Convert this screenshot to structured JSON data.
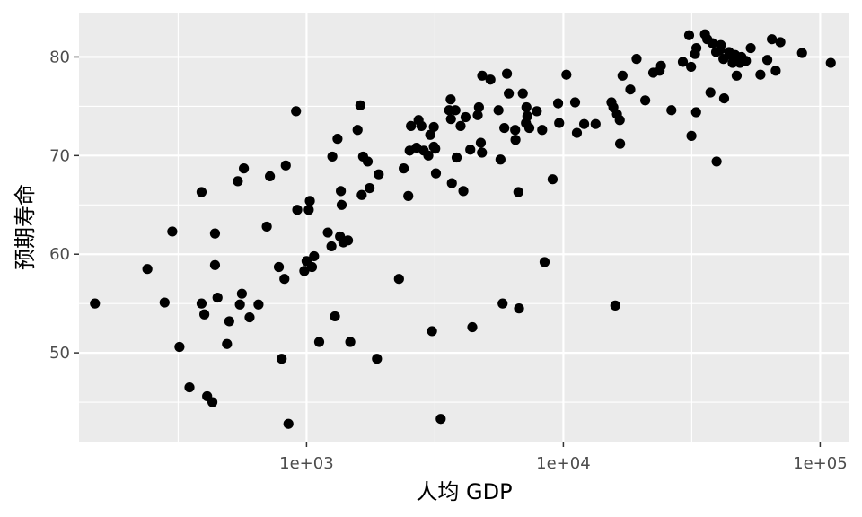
{
  "chart_data": {
    "type": "scatter",
    "xlabel": "人均 GDP",
    "ylabel": "预期寿命",
    "x_scale": "log10",
    "xlim": [
      130,
      130000
    ],
    "ylim": [
      41,
      84.5
    ],
    "x_ticks": [
      {
        "value": 1000,
        "label": "1e+03"
      },
      {
        "value": 10000,
        "label": "1e+04"
      },
      {
        "value": 100000,
        "label": "1e+05"
      }
    ],
    "x_minor_ticks": [
      316.23,
      3162.3,
      31623
    ],
    "y_ticks": [
      {
        "value": 50,
        "label": "50"
      },
      {
        "value": 60,
        "label": "60"
      },
      {
        "value": 70,
        "label": "70"
      },
      {
        "value": 80,
        "label": "80"
      }
    ],
    "y_minor_ticks": [
      45,
      55,
      65,
      75
    ],
    "grid": true,
    "point_color": "#000000",
    "panel_color": "#ebebeb",
    "grid_color": "#ffffff",
    "points": [
      [
        150,
        55.0
      ],
      [
        240,
        58.5
      ],
      [
        280,
        55.1
      ],
      [
        300,
        62.3
      ],
      [
        320,
        50.6
      ],
      [
        350,
        46.5
      ],
      [
        390,
        66.3
      ],
      [
        390,
        55.0
      ],
      [
        400,
        53.9
      ],
      [
        410,
        45.6
      ],
      [
        430,
        45.0
      ],
      [
        440,
        62.1
      ],
      [
        440,
        58.9
      ],
      [
        450,
        55.6
      ],
      [
        490,
        50.9
      ],
      [
        500,
        53.2
      ],
      [
        540,
        67.4
      ],
      [
        550,
        54.9
      ],
      [
        560,
        56.0
      ],
      [
        570,
        68.7
      ],
      [
        600,
        53.6
      ],
      [
        650,
        54.9
      ],
      [
        700,
        62.8
      ],
      [
        720,
        67.9
      ],
      [
        780,
        58.7
      ],
      [
        800,
        49.4
      ],
      [
        820,
        57.5
      ],
      [
        830,
        69.0
      ],
      [
        850,
        42.8
      ],
      [
        910,
        74.5
      ],
      [
        920,
        64.5
      ],
      [
        980,
        58.3
      ],
      [
        1000,
        59.3
      ],
      [
        1020,
        64.5
      ],
      [
        1030,
        65.4
      ],
      [
        1050,
        58.7
      ],
      [
        1070,
        59.8
      ],
      [
        1120,
        51.1
      ],
      [
        1210,
        62.2
      ],
      [
        1250,
        60.8
      ],
      [
        1260,
        69.9
      ],
      [
        1290,
        53.7
      ],
      [
        1320,
        71.7
      ],
      [
        1350,
        61.8
      ],
      [
        1360,
        66.4
      ],
      [
        1370,
        65.0
      ],
      [
        1390,
        61.2
      ],
      [
        1450,
        61.4
      ],
      [
        1480,
        51.1
      ],
      [
        1580,
        72.6
      ],
      [
        1620,
        75.1
      ],
      [
        1640,
        66.0
      ],
      [
        1660,
        69.9
      ],
      [
        1730,
        69.4
      ],
      [
        1760,
        66.7
      ],
      [
        1880,
        49.4
      ],
      [
        1910,
        68.1
      ],
      [
        2290,
        57.5
      ],
      [
        2390,
        68.7
      ],
      [
        2490,
        65.9
      ],
      [
        2520,
        70.5
      ],
      [
        2550,
        73.0
      ],
      [
        2680,
        70.8
      ],
      [
        2730,
        73.6
      ],
      [
        2800,
        73.0
      ],
      [
        2860,
        70.5
      ],
      [
        2980,
        70.0
      ],
      [
        3030,
        72.1
      ],
      [
        3080,
        52.2
      ],
      [
        3130,
        70.9
      ],
      [
        3130,
        72.9
      ],
      [
        3170,
        70.7
      ],
      [
        3190,
        68.2
      ],
      [
        3330,
        43.3
      ],
      [
        3590,
        74.6
      ],
      [
        3640,
        75.7
      ],
      [
        3650,
        73.7
      ],
      [
        3680,
        67.2
      ],
      [
        3800,
        74.6
      ],
      [
        3840,
        69.8
      ],
      [
        3980,
        73.0
      ],
      [
        4080,
        66.4
      ],
      [
        4160,
        73.9
      ],
      [
        4340,
        70.6
      ],
      [
        4420,
        52.6
      ],
      [
        4640,
        74.1
      ],
      [
        4690,
        74.9
      ],
      [
        4770,
        71.3
      ],
      [
        4820,
        70.3
      ],
      [
        4830,
        78.1
      ],
      [
        5200,
        77.7
      ],
      [
        5590,
        74.6
      ],
      [
        5690,
        69.6
      ],
      [
        5800,
        55.0
      ],
      [
        5890,
        72.8
      ],
      [
        6030,
        78.3
      ],
      [
        6130,
        76.3
      ],
      [
        6490,
        72.6
      ],
      [
        6510,
        71.6
      ],
      [
        6680,
        66.3
      ],
      [
        6720,
        54.5
      ],
      [
        6950,
        76.3
      ],
      [
        7150,
        73.3
      ],
      [
        7180,
        74.9
      ],
      [
        7240,
        74.0
      ],
      [
        7370,
        72.8
      ],
      [
        7880,
        74.5
      ],
      [
        8270,
        72.6
      ],
      [
        8450,
        59.2
      ],
      [
        9080,
        67.6
      ],
      [
        9540,
        75.3
      ],
      [
        9630,
        73.3
      ],
      [
        10280,
        78.2
      ],
      [
        11110,
        75.4
      ],
      [
        11290,
        72.3
      ],
      [
        12050,
        73.2
      ],
      [
        13350,
        73.2
      ],
      [
        15390,
        75.4
      ],
      [
        15660,
        74.9
      ],
      [
        15930,
        54.8
      ],
      [
        16170,
        74.2
      ],
      [
        16580,
        73.6
      ],
      [
        16630,
        71.2
      ],
      [
        17000,
        78.1
      ],
      [
        18230,
        76.7
      ],
      [
        19280,
        79.8
      ],
      [
        20840,
        75.6
      ],
      [
        22390,
        78.4
      ],
      [
        23710,
        78.6
      ],
      [
        24000,
        79.1
      ],
      [
        26350,
        74.6
      ],
      [
        29200,
        79.5
      ],
      [
        30880,
        82.2
      ],
      [
        31440,
        79.0
      ],
      [
        31540,
        72.0
      ],
      [
        32570,
        80.3
      ],
      [
        32880,
        74.4
      ],
      [
        32970,
        80.9
      ],
      [
        35600,
        82.3
      ],
      [
        36320,
        81.8
      ],
      [
        37390,
        76.4
      ],
      [
        38030,
        81.4
      ],
      [
        39340,
        80.5
      ],
      [
        39520,
        69.4
      ],
      [
        40680,
        80.7
      ],
      [
        41020,
        81.2
      ],
      [
        42010,
        79.8
      ],
      [
        42270,
        75.8
      ],
      [
        44170,
        80.5
      ],
      [
        44500,
        80.2
      ],
      [
        45620,
        79.4
      ],
      [
        46640,
        80.2
      ],
      [
        47310,
        78.1
      ],
      [
        48700,
        79.4
      ],
      [
        49360,
        80.0
      ],
      [
        51410,
        79.6
      ],
      [
        53660,
        80.9
      ],
      [
        58540,
        78.2
      ],
      [
        62270,
        79.7
      ],
      [
        64850,
        81.8
      ],
      [
        67130,
        78.6
      ],
      [
        70000,
        81.5
      ],
      [
        85000,
        80.4
      ],
      [
        110000,
        79.4
      ]
    ]
  }
}
